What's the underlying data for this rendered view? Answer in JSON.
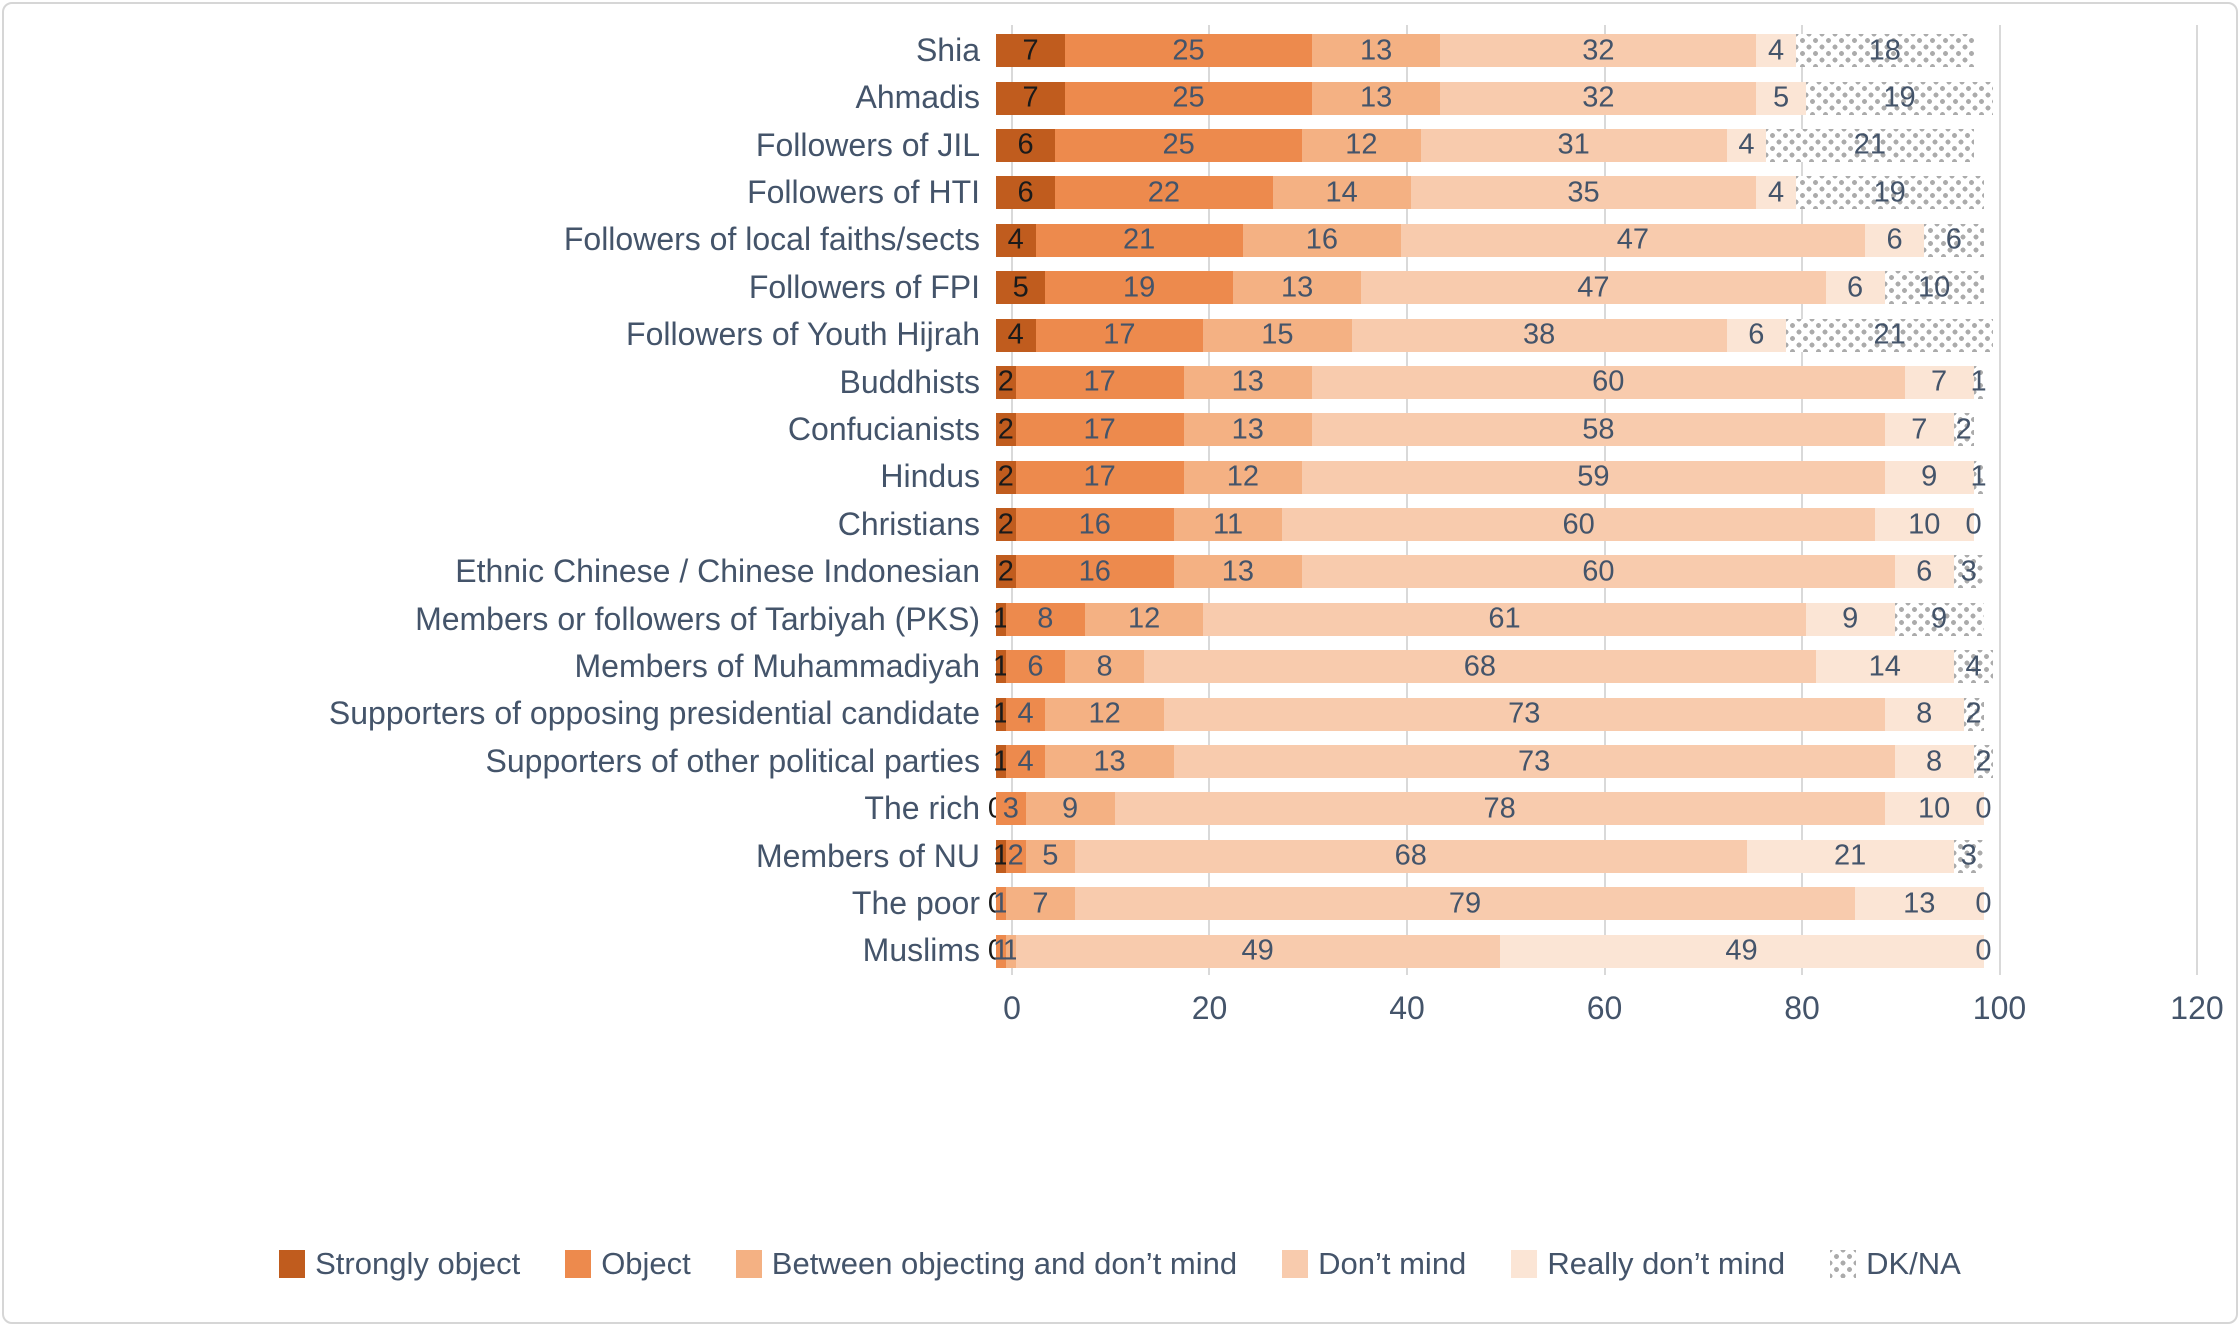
{
  "page": {
    "background": "#FFFFFF",
    "border_color": "#D6D6D6"
  },
  "chart_data": {
    "type": "bar",
    "orientation": "horizontal",
    "stacked": true,
    "title": "",
    "xlabel": "",
    "ylabel": "",
    "xlim": [
      0,
      120
    ],
    "x_ticks": [
      0,
      20,
      40,
      60,
      80,
      100,
      120
    ],
    "grid": true,
    "legend_position": "bottom",
    "text_color": "#44546A",
    "gridline_color": "#D9D9D9",
    "categories": [
      "Shia",
      "Ahmadis",
      "Followers of JIL",
      "Followers of HTI",
      "Followers of local faiths/sects",
      "Followers of FPI",
      "Followers of Youth Hijrah",
      "Buddhists",
      "Confucianists",
      "Hindus",
      "Christians",
      "Ethnic Chinese / Chinese Indonesian",
      "Members or followers of Tarbiyah (PKS)",
      "Members of Muhammadiyah",
      "Supporters of opposing presidential candidate",
      "Supporters of other political parties",
      "The rich",
      "Members of NU",
      "The poor",
      "Muslims"
    ],
    "series": [
      {
        "name": "Strongly object",
        "color": "#C05C1E",
        "label_color": "#1A1A1A",
        "pattern": "solid",
        "values": [
          7,
          7,
          6,
          6,
          4,
          5,
          4,
          2,
          2,
          2,
          2,
          2,
          1,
          1,
          1,
          1,
          0,
          1,
          0,
          0
        ]
      },
      {
        "name": "Object",
        "color": "#ED8A4D",
        "label_color": "#44546A",
        "pattern": "solid",
        "values": [
          25,
          25,
          25,
          22,
          21,
          19,
          17,
          17,
          17,
          17,
          16,
          16,
          8,
          6,
          4,
          4,
          3,
          2,
          1,
          1
        ]
      },
      {
        "name": "Between objecting and don’t mind",
        "color": "#F4B183",
        "label_color": "#44546A",
        "pattern": "solid",
        "values": [
          13,
          13,
          12,
          14,
          16,
          13,
          15,
          13,
          13,
          12,
          11,
          13,
          12,
          8,
          12,
          13,
          9,
          5,
          7,
          1
        ]
      },
      {
        "name": "Don’t mind",
        "color": "#F8CBAD",
        "label_color": "#44546A",
        "pattern": "solid",
        "values": [
          32,
          32,
          31,
          35,
          47,
          47,
          38,
          60,
          58,
          59,
          60,
          60,
          61,
          68,
          73,
          73,
          78,
          68,
          79,
          49
        ]
      },
      {
        "name": "Really don’t mind",
        "color": "#FBE5D5",
        "label_color": "#44546A",
        "pattern": "solid",
        "values": [
          4,
          5,
          4,
          4,
          6,
          6,
          6,
          7,
          7,
          9,
          10,
          6,
          9,
          14,
          8,
          8,
          10,
          21,
          13,
          49
        ]
      },
      {
        "name": "DK/NA",
        "color": "#FFFFFF",
        "dot_color": "#ABABAB",
        "label_color": "#44546A",
        "pattern": "dots",
        "values": [
          18,
          19,
          21,
          19,
          6,
          10,
          21,
          1,
          2,
          1,
          0,
          3,
          9,
          4,
          2,
          2,
          0,
          3,
          0,
          0
        ]
      }
    ]
  }
}
